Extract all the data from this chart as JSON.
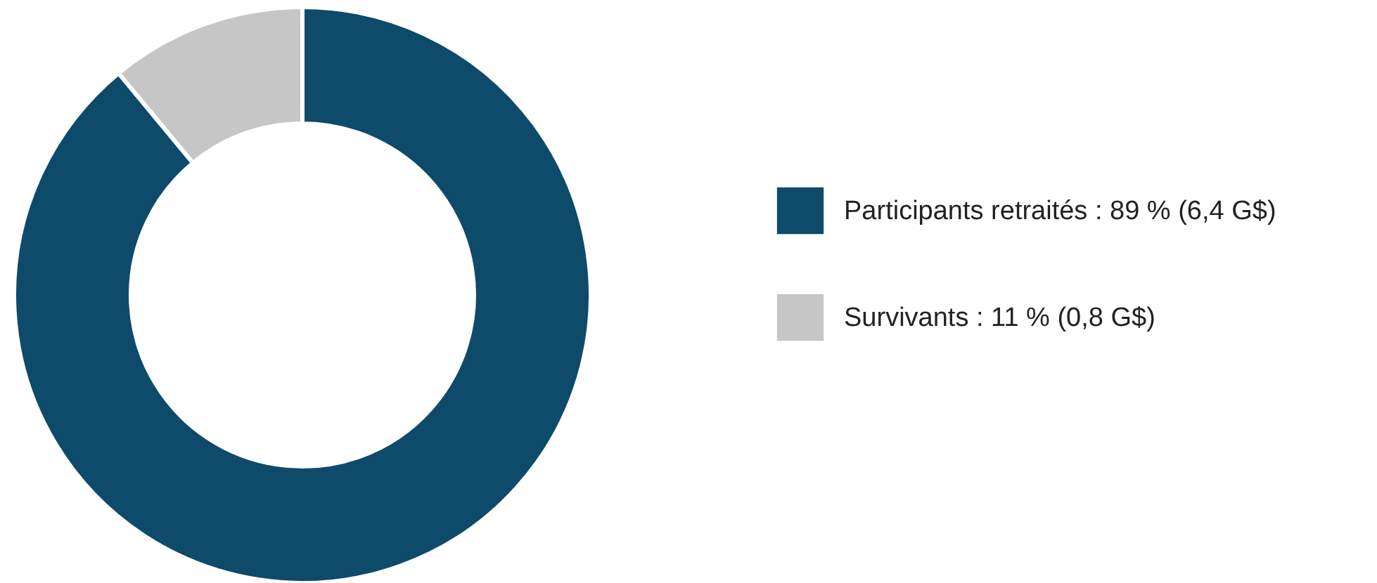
{
  "chart_data": {
    "type": "donut",
    "categories": [
      "Participants retraités : 89 % (6,4 G$)",
      "Survivants : 11 % (0,8 G$)"
    ],
    "values": [
      89,
      11
    ],
    "colors": [
      "#0e4a6a",
      "#c6c6c6"
    ],
    "legend": "right"
  }
}
